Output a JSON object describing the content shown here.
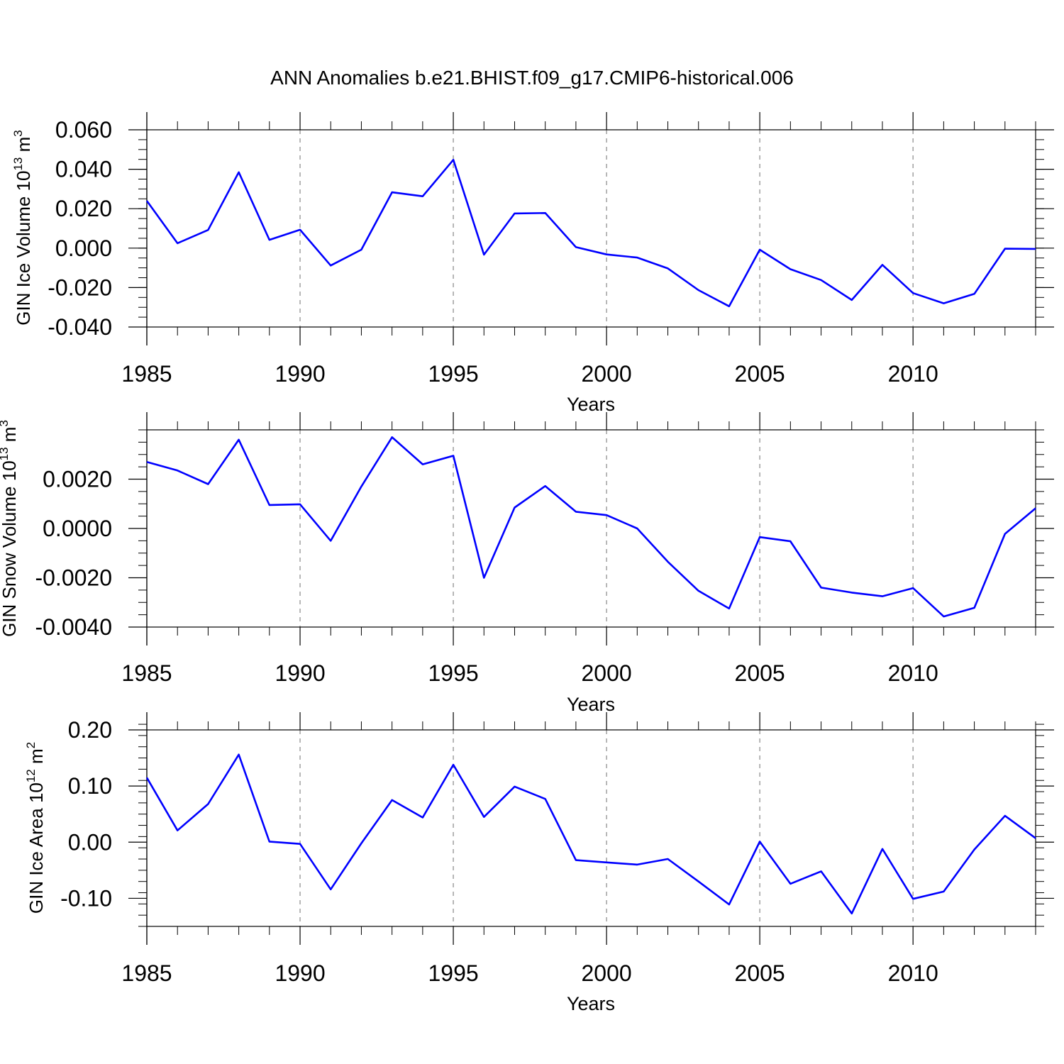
{
  "title": "ANN Anomalies b.e21.BHIST.f09_g17.CMIP6-historical.006",
  "colors": {
    "series": "#0000ff",
    "grid": "#999999",
    "axis": "#000000"
  },
  "chart_data": [
    {
      "type": "line",
      "title": "",
      "xlabel": "Years",
      "ylabel": {
        "text": "GIN Ice Volume 10",
        "exp": "13",
        "unit": " m",
        "unit_exp": "3"
      },
      "xlim": [
        1985,
        2014
      ],
      "ylim": [
        -0.04,
        0.06
      ],
      "yticks": [
        -0.04,
        -0.02,
        0.0,
        0.02,
        0.04,
        0.06
      ],
      "ytick_labels": [
        "-0.040",
        "-0.020",
        "0.000",
        "0.020",
        "0.040",
        "0.060"
      ],
      "ytick_minor_step": 0.005,
      "xticks": [
        1985,
        1990,
        1995,
        2000,
        2005,
        2010
      ],
      "xtick_labels": [
        "1985",
        "1990",
        "1995",
        "2000",
        "2005",
        "2010"
      ],
      "grid": "dashed vertical at major x ticks",
      "x": [
        1985,
        1986,
        1987,
        1988,
        1989,
        1990,
        1991,
        1992,
        1993,
        1994,
        1995,
        1996,
        1997,
        1998,
        1999,
        2000,
        2001,
        2002,
        2003,
        2004,
        2005,
        2006,
        2007,
        2008,
        2009,
        2010,
        2011,
        2012,
        2013,
        2014
      ],
      "series": [
        {
          "values": [
            0.024,
            0.0025,
            0.0092,
            0.0385,
            0.0042,
            0.0093,
            -0.0088,
            -0.0008,
            0.0283,
            0.0263,
            0.0448,
            -0.0033,
            0.0176,
            0.0178,
            0.0005,
            -0.0032,
            -0.0048,
            -0.0103,
            -0.0213,
            -0.0295,
            -0.0008,
            -0.0107,
            -0.0162,
            -0.0263,
            -0.0085,
            -0.0228,
            -0.028,
            -0.0232,
            -0.0003,
            -0.0004
          ]
        }
      ]
    },
    {
      "type": "line",
      "title": "",
      "xlabel": "Years",
      "ylabel": {
        "text": "GIN Snow Volume 10",
        "exp": "13",
        "unit": " m",
        "unit_exp": "3"
      },
      "xlim": [
        1985,
        2014
      ],
      "ylim": [
        -0.004,
        0.004
      ],
      "yticks": [
        -0.004,
        -0.002,
        0.0,
        0.002
      ],
      "ytick_labels": [
        "-0.0040",
        "-0.0020",
        "0.0000",
        "0.0020"
      ],
      "ytick_minor_step": 0.0005,
      "xticks": [
        1985,
        1990,
        1995,
        2000,
        2005,
        2010
      ],
      "xtick_labels": [
        "1985",
        "1990",
        "1995",
        "2000",
        "2005",
        "2010"
      ],
      "grid": "dashed vertical at major x ticks",
      "x": [
        1985,
        1986,
        1987,
        1988,
        1989,
        1990,
        1991,
        1992,
        1993,
        1994,
        1995,
        1996,
        1997,
        1998,
        1999,
        2000,
        2001,
        2002,
        2003,
        2004,
        2005,
        2006,
        2007,
        2008,
        2009,
        2010,
        2011,
        2012,
        2013,
        2014
      ],
      "series": [
        {
          "values": [
            0.0027,
            0.00235,
            0.0018,
            0.0036,
            0.00095,
            0.00098,
            -0.0005,
            0.0017,
            0.0037,
            0.0026,
            0.00295,
            -0.002,
            0.00085,
            0.00172,
            0.00068,
            0.00054,
            0.0,
            -0.00135,
            -0.00253,
            -0.00325,
            -0.00035,
            -0.00052,
            -0.0024,
            -0.0026,
            -0.00275,
            -0.00242,
            -0.00357,
            -0.00322,
            -0.00022,
            0.00082
          ]
        }
      ]
    },
    {
      "type": "line",
      "title": "",
      "xlabel": "Years",
      "ylabel": {
        "text": "GIN Ice Area 10",
        "exp": "12",
        "unit": " m",
        "unit_exp": "2"
      },
      "xlim": [
        1985,
        2014
      ],
      "ylim": [
        -0.15,
        0.2
      ],
      "yticks": [
        -0.1,
        0.0,
        0.1,
        0.2
      ],
      "ytick_labels": [
        "-0.10",
        "0.00",
        "0.10",
        "0.20"
      ],
      "ytick_minor_step": 0.02,
      "xticks": [
        1985,
        1990,
        1995,
        2000,
        2005,
        2010
      ],
      "xtick_labels": [
        "1985",
        "1990",
        "1995",
        "2000",
        "2005",
        "2010"
      ],
      "grid": "dashed vertical at major x ticks",
      "x": [
        1985,
        1986,
        1987,
        1988,
        1989,
        1990,
        1991,
        1992,
        1993,
        1994,
        1995,
        1996,
        1997,
        1998,
        1999,
        2000,
        2001,
        2002,
        2003,
        2004,
        2005,
        2006,
        2007,
        2008,
        2009,
        2010,
        2011,
        2012,
        2013,
        2014
      ],
      "series": [
        {
          "values": [
            0.115,
            0.021,
            0.068,
            0.156,
            0.001,
            -0.003,
            -0.084,
            -0.002,
            0.075,
            0.044,
            0.138,
            0.045,
            0.099,
            0.077,
            -0.032,
            -0.036,
            -0.04,
            -0.03,
            -0.07,
            -0.111,
            0.001,
            -0.074,
            -0.052,
            -0.127,
            -0.012,
            -0.101,
            -0.088,
            -0.013,
            0.047,
            0.007
          ]
        }
      ]
    }
  ]
}
